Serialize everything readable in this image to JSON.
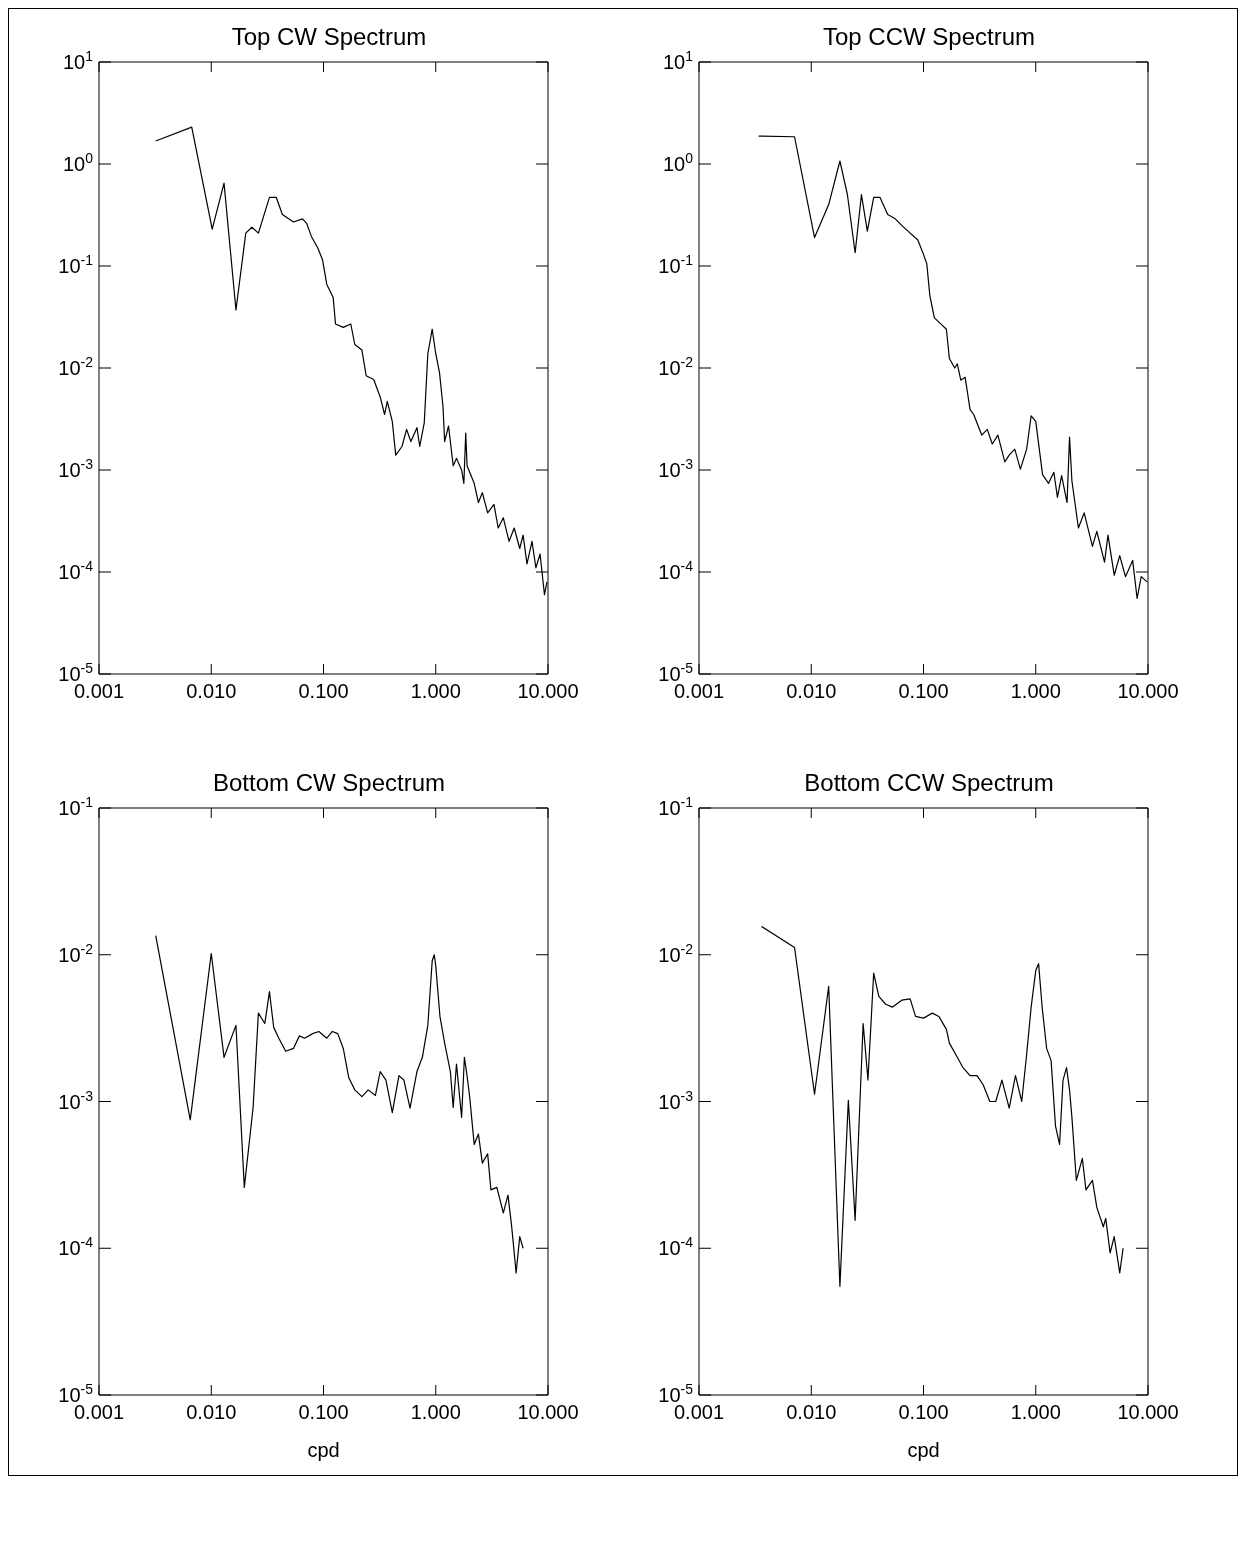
{
  "chart_data": [
    {
      "type": "line",
      "title": "Top CW Spectrum",
      "log": "xy",
      "xlim": [
        0.001,
        10
      ],
      "ylim": [
        1e-05,
        10
      ],
      "xticks": [
        {
          "value": 0.001,
          "label": "0.001"
        },
        {
          "value": 0.01,
          "label": "0.010"
        },
        {
          "value": 0.1,
          "label": "0.100"
        },
        {
          "value": 1,
          "label": "1.000"
        },
        {
          "value": 10,
          "label": "10.000"
        }
      ],
      "yticks": [
        {
          "value": 1e-05,
          "label": "10$^{-5}$"
        },
        {
          "value": 0.0001,
          "label": "10$^{-4}$"
        },
        {
          "value": 0.001,
          "label": "10$^{-3}$"
        },
        {
          "value": 0.01,
          "label": "10$^{-2}$"
        },
        {
          "value": 0.1,
          "label": "10$^{-1}$"
        },
        {
          "value": 1,
          "label": "10$^{0}$"
        },
        {
          "value": 10,
          "label": "10$^{1}$"
        }
      ],
      "x": [
        0.0032,
        0.0067,
        0.0102,
        0.013,
        0.0166,
        0.0203,
        0.023,
        0.0263,
        0.033,
        0.038,
        0.043,
        0.054,
        0.065,
        0.071,
        0.078,
        0.089,
        0.098,
        0.107,
        0.122,
        0.128,
        0.15,
        0.175,
        0.19,
        0.22,
        0.24,
        0.28,
        0.32,
        0.35,
        0.37,
        0.41,
        0.44,
        0.5,
        0.55,
        0.6,
        0.68,
        0.72,
        0.79,
        0.85,
        0.93,
        1.0,
        1.08,
        1.16,
        1.2,
        1.3,
        1.43,
        1.53,
        1.7,
        1.78,
        1.85,
        1.9,
        2.2,
        2.4,
        2.6,
        2.9,
        3.3,
        3.6,
        4.0,
        4.5,
        5.0,
        5.6,
        6.0,
        6.5,
        7.2,
        7.8,
        8.5,
        9.3,
        9.8
      ],
      "series": [
        {
          "color": "#000000",
          "values": [
            1.68,
            2.3,
            0.23,
            0.65,
            0.037,
            0.21,
            0.24,
            0.21,
            0.47,
            0.47,
            0.32,
            0.27,
            0.29,
            0.26,
            0.195,
            0.15,
            0.115,
            0.066,
            0.049,
            0.027,
            0.025,
            0.027,
            0.017,
            0.015,
            0.0084,
            0.0077,
            0.0052,
            0.0035,
            0.0047,
            0.003,
            0.0014,
            0.0017,
            0.0025,
            0.0019,
            0.0026,
            0.0017,
            0.0029,
            0.0138,
            0.024,
            0.0138,
            0.009,
            0.0042,
            0.0019,
            0.0027,
            0.0011,
            0.0013,
            0.001,
            0.00074,
            0.0023,
            0.0011,
            0.00074,
            0.00048,
            0.0006,
            0.00038,
            0.00046,
            0.00027,
            0.00034,
            0.0002,
            0.00027,
            0.00017,
            0.00023,
            0.00012,
            0.0002,
            0.00011,
            0.00015,
            6e-05,
            8e-05
          ]
        }
      ]
    },
    {
      "type": "line",
      "title": "Top CCW Spectrum",
      "log": "xy",
      "xlim": [
        0.001,
        10
      ],
      "ylim": [
        1e-05,
        10
      ],
      "xticks": [
        {
          "value": 0.001,
          "label": "0.001"
        },
        {
          "value": 0.01,
          "label": "0.010"
        },
        {
          "value": 0.1,
          "label": "0.100"
        },
        {
          "value": 1,
          "label": "1.000"
        },
        {
          "value": 10,
          "label": "10.000"
        }
      ],
      "yticks": [
        {
          "value": 1e-05,
          "label": "10$^{-5}$"
        },
        {
          "value": 0.0001,
          "label": "10$^{-4}$"
        },
        {
          "value": 0.001,
          "label": "10$^{-3}$"
        },
        {
          "value": 0.01,
          "label": "10$^{-2}$"
        },
        {
          "value": 0.1,
          "label": "10$^{-1}$"
        },
        {
          "value": 1,
          "label": "10$^{0}$"
        },
        {
          "value": 10,
          "label": "10$^{1}$"
        }
      ],
      "x": [
        0.0034,
        0.0071,
        0.0107,
        0.0143,
        0.018,
        0.021,
        0.0246,
        0.028,
        0.0316,
        0.036,
        0.041,
        0.048,
        0.056,
        0.064,
        0.076,
        0.089,
        0.1,
        0.107,
        0.114,
        0.125,
        0.138,
        0.16,
        0.17,
        0.19,
        0.2,
        0.215,
        0.235,
        0.26,
        0.28,
        0.33,
        0.37,
        0.41,
        0.46,
        0.53,
        0.58,
        0.65,
        0.73,
        0.83,
        0.91,
        1.0,
        1.15,
        1.3,
        1.45,
        1.56,
        1.7,
        1.9,
        2.0,
        2.1,
        2.4,
        2.7,
        3.2,
        3.5,
        4.1,
        4.4,
        5.0,
        5.6,
        6.3,
        7.3,
        8.0,
        8.7,
        9.8
      ],
      "series": [
        {
          "color": "#000000",
          "values": [
            1.88,
            1.85,
            0.19,
            0.4,
            1.07,
            0.5,
            0.135,
            0.5,
            0.22,
            0.47,
            0.47,
            0.32,
            0.29,
            0.25,
            0.21,
            0.18,
            0.13,
            0.105,
            0.051,
            0.031,
            0.028,
            0.024,
            0.0124,
            0.01,
            0.011,
            0.0076,
            0.0081,
            0.0039,
            0.0035,
            0.0022,
            0.0025,
            0.0018,
            0.0022,
            0.0012,
            0.0014,
            0.0016,
            0.00102,
            0.0016,
            0.0034,
            0.003,
            0.0009,
            0.00074,
            0.00095,
            0.00054,
            0.00088,
            0.00048,
            0.0021,
            0.00078,
            0.00027,
            0.00038,
            0.000178,
            0.00025,
            0.000125,
            0.00023,
            9.3e-05,
            0.000145,
            9e-05,
            0.00013,
            5.5e-05,
            9e-05,
            8e-05
          ]
        }
      ]
    },
    {
      "type": "line",
      "title": "Bottom CW Spectrum",
      "xlabel": "cpd",
      "log": "xy",
      "xlim": [
        0.001,
        10
      ],
      "ylim": [
        1e-05,
        0.1
      ],
      "xticks": [
        {
          "value": 0.001,
          "label": "0.001"
        },
        {
          "value": 0.01,
          "label": "0.010"
        },
        {
          "value": 0.1,
          "label": "0.100"
        },
        {
          "value": 1,
          "label": "1.000"
        },
        {
          "value": 10,
          "label": "10.000"
        }
      ],
      "yticks": [
        {
          "value": 1e-05,
          "label": "10$^{-5}$"
        },
        {
          "value": 0.0001,
          "label": "10$^{-4}$"
        },
        {
          "value": 0.001,
          "label": "10$^{-3}$"
        },
        {
          "value": 0.01,
          "label": "10$^{-2}$"
        },
        {
          "value": 0.1,
          "label": "10$^{-1}$"
        }
      ],
      "x": [
        0.0032,
        0.0065,
        0.01,
        0.013,
        0.0166,
        0.0197,
        0.0236,
        0.0263,
        0.03,
        0.033,
        0.036,
        0.04,
        0.046,
        0.054,
        0.061,
        0.068,
        0.08,
        0.091,
        0.107,
        0.12,
        0.134,
        0.15,
        0.168,
        0.19,
        0.22,
        0.25,
        0.29,
        0.32,
        0.36,
        0.41,
        0.47,
        0.52,
        0.59,
        0.68,
        0.76,
        0.85,
        0.93,
        0.97,
        1.0,
        1.09,
        1.2,
        1.35,
        1.43,
        1.53,
        1.7,
        1.8,
        1.9,
        2.0,
        2.2,
        2.4,
        2.6,
        2.9,
        3.1,
        3.5,
        4.0,
        4.4,
        4.75,
        5.2,
        5.6,
        6.0
      ],
      "series": [
        {
          "color": "#000000",
          "values": [
            0.0135,
            0.00075,
            0.0102,
            0.002,
            0.0033,
            0.00026,
            0.00091,
            0.004,
            0.0034,
            0.0056,
            0.0032,
            0.0027,
            0.0022,
            0.0023,
            0.0028,
            0.0027,
            0.0029,
            0.003,
            0.0027,
            0.003,
            0.0029,
            0.0023,
            0.00145,
            0.0012,
            0.00108,
            0.0012,
            0.0011,
            0.0016,
            0.0014,
            0.00084,
            0.0015,
            0.0014,
            0.0009,
            0.0016,
            0.002,
            0.0033,
            0.0091,
            0.01,
            0.0084,
            0.0038,
            0.0025,
            0.0016,
            0.00091,
            0.0018,
            0.00078,
            0.002,
            0.0015,
            0.0011,
            0.00051,
            0.0006,
            0.00038,
            0.00044,
            0.00025,
            0.00026,
            0.000174,
            0.00023,
            0.00014,
            6.8e-05,
            0.00012,
            0.0001
          ]
        }
      ]
    },
    {
      "type": "line",
      "title": "Bottom CCW Spectrum",
      "xlabel": "cpd",
      "log": "xy",
      "xlim": [
        0.001,
        10
      ],
      "ylim": [
        1e-05,
        0.1
      ],
      "xticks": [
        {
          "value": 0.001,
          "label": "0.001"
        },
        {
          "value": 0.01,
          "label": "0.010"
        },
        {
          "value": 0.1,
          "label": "0.100"
        },
        {
          "value": 1,
          "label": "1.000"
        },
        {
          "value": 10,
          "label": "10.000"
        }
      ],
      "yticks": [
        {
          "value": 1e-05,
          "label": "10$^{-5}$"
        },
        {
          "value": 0.0001,
          "label": "10$^{-4}$"
        },
        {
          "value": 0.001,
          "label": "10$^{-3}$"
        },
        {
          "value": 0.01,
          "label": "10$^{-2}$"
        },
        {
          "value": 0.1,
          "label": "10$^{-1}$"
        }
      ],
      "x": [
        0.0036,
        0.0071,
        0.0107,
        0.0143,
        0.018,
        0.0214,
        0.0246,
        0.029,
        0.032,
        0.036,
        0.04,
        0.046,
        0.053,
        0.064,
        0.076,
        0.085,
        0.1,
        0.12,
        0.137,
        0.16,
        0.17,
        0.2,
        0.225,
        0.26,
        0.3,
        0.34,
        0.39,
        0.44,
        0.5,
        0.58,
        0.66,
        0.75,
        0.83,
        0.91,
        1.0,
        1.06,
        1.14,
        1.25,
        1.37,
        1.5,
        1.63,
        1.75,
        1.88,
        2.0,
        2.1,
        2.3,
        2.6,
        2.8,
        3.2,
        3.5,
        4.0,
        4.2,
        4.6,
        5.0,
        5.6,
        6.0
      ],
      "series": [
        {
          "color": "#000000",
          "values": [
            0.0156,
            0.0112,
            0.00112,
            0.0061,
            5.5e-05,
            0.00102,
            0.000155,
            0.0034,
            0.0014,
            0.0075,
            0.0052,
            0.0046,
            0.0044,
            0.0049,
            0.005,
            0.0038,
            0.0037,
            0.004,
            0.0038,
            0.0031,
            0.0025,
            0.002,
            0.0017,
            0.0015,
            0.0015,
            0.0013,
            0.001,
            0.001,
            0.0014,
            0.0009,
            0.0015,
            0.001,
            0.0021,
            0.0044,
            0.0078,
            0.0087,
            0.0044,
            0.0023,
            0.0019,
            0.00068,
            0.00051,
            0.0014,
            0.0017,
            0.0012,
            0.00078,
            0.00029,
            0.00041,
            0.00025,
            0.00029,
            0.00019,
            0.00014,
            0.00016,
            9.3e-05,
            0.00012,
            6.8e-05,
            0.0001
          ]
        }
      ]
    }
  ]
}
